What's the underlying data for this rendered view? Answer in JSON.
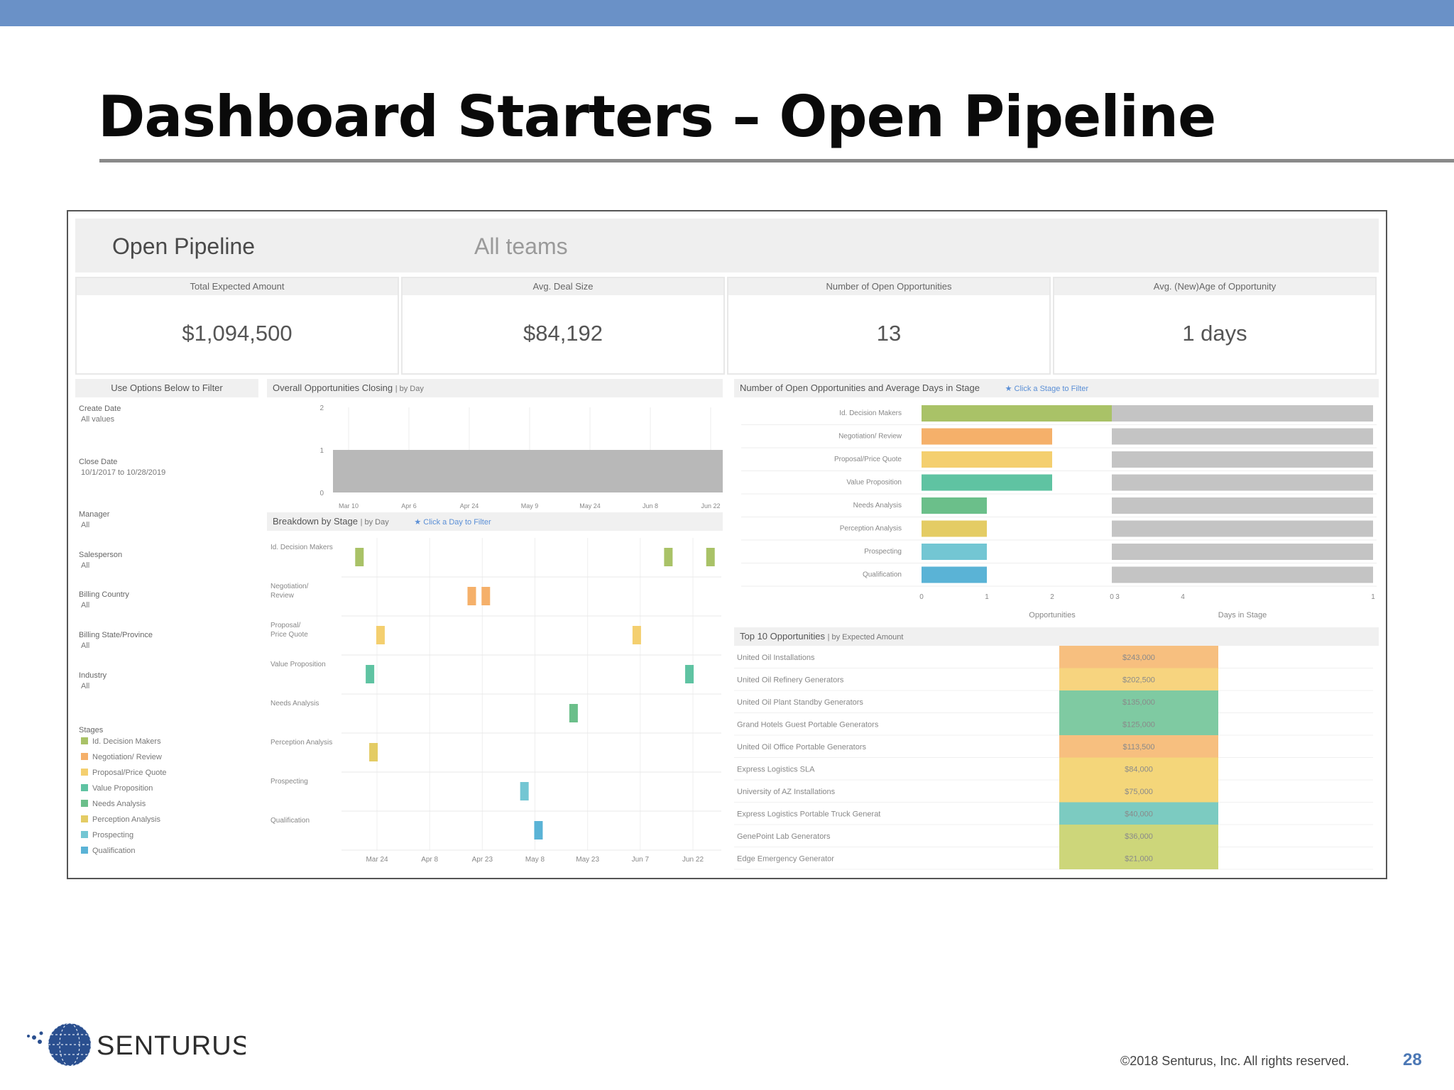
{
  "slide": {
    "title": "Dashboard Starters – Open Pipeline",
    "copyright": "©2018 Senturus, Inc. All rights reserved.",
    "page_number": "28",
    "logo_text": "SENTURUS"
  },
  "dashboard": {
    "title": "Open Pipeline",
    "subtitle": "All teams",
    "kpis": [
      {
        "label": "Total Expected Amount",
        "value": "$1,094,500"
      },
      {
        "label": "Avg. Deal Size",
        "value": "$84,192"
      },
      {
        "label": "Number of Open Opportunities",
        "value": "13"
      },
      {
        "label": "Avg. (New)Age of Opportunity",
        "value": "1 days"
      }
    ],
    "filters": {
      "heading": "Use Options Below to Filter",
      "items": [
        {
          "label": "Create Date",
          "value": "All values"
        },
        {
          "label": "Close Date",
          "value": "10/1/2017 to 10/28/2019"
        },
        {
          "label": "Manager",
          "value": "All"
        },
        {
          "label": "Salesperson",
          "value": "All"
        },
        {
          "label": "Billing Country",
          "value": "All"
        },
        {
          "label": "Billing State/Province",
          "value": "All"
        },
        {
          "label": "Industry",
          "value": "All"
        }
      ],
      "stages_heading": "Stages",
      "stages": [
        {
          "label": "Id. Decision Makers",
          "color": "#a9c267"
        },
        {
          "label": "Negotiation/ Review",
          "color": "#f5b06a"
        },
        {
          "label": "Proposal/Price Quote",
          "color": "#f4cf6f"
        },
        {
          "label": "Value Proposition",
          "color": "#5fc3a2"
        },
        {
          "label": "Needs Analysis",
          "color": "#6bbf8a"
        },
        {
          "label": "Perception Analysis",
          "color": "#e4cc64"
        },
        {
          "label": "Prospecting",
          "color": "#73c6d3"
        },
        {
          "label": "Qualification",
          "color": "#5ab3d6"
        }
      ]
    },
    "closing_chart": {
      "title": "Overall Opportunities Closing",
      "subtitle": "| by Day"
    },
    "breakdown_chart": {
      "title": "Breakdown by Stage",
      "subtitle": "| by Day",
      "hint": "★ Click a Day to Filter"
    },
    "stage_chart": {
      "title": "Number of Open Opportunities and Average Days in Stage",
      "hint": "★ Click a Stage to Filter"
    },
    "top10": {
      "title": "Top 10 Opportunities",
      "subtitle": "| by Expected Amount"
    }
  },
  "chart_data": [
    {
      "type": "bar",
      "title": "Overall Opportunities Closing",
      "x_ticks": [
        "Mar 10",
        "Apr 6",
        "Apr 24",
        "May 9",
        "May 24",
        "Jun 8",
        "Jun 22"
      ],
      "y_ticks": [
        "2",
        "1",
        "0"
      ],
      "ylim": [
        0,
        2
      ],
      "bars": [
        {
          "x_start": "Mar 10",
          "x_end": "Jun 22",
          "value": 1
        }
      ],
      "color": "#b8b8b8"
    },
    {
      "type": "bar",
      "title": "Breakdown by Stage",
      "categories": [
        "Id. Decision Makers",
        "Negotiation/ Review",
        "Proposal/Price Quote",
        "Value Proposition",
        "Needs Analysis",
        "Perception Analysis",
        "Prospecting",
        "Qualification"
      ],
      "x_ticks": [
        "Mar 24",
        "Apr 8",
        "Apr 23",
        "May 8",
        "May 23",
        "Jun 7",
        "Jun 22"
      ],
      "marks": [
        {
          "stage": 0,
          "date": "Mar 19"
        },
        {
          "stage": 0,
          "date": "Jun 15"
        },
        {
          "stage": 0,
          "date": "Jun 27"
        },
        {
          "stage": 1,
          "date": "Apr 20"
        },
        {
          "stage": 1,
          "date": "Apr 24"
        },
        {
          "stage": 2,
          "date": "Mar 25"
        },
        {
          "stage": 2,
          "date": "Jun 6"
        },
        {
          "stage": 3,
          "date": "Mar 22"
        },
        {
          "stage": 3,
          "date": "Jun 21"
        },
        {
          "stage": 4,
          "date": "May 19"
        },
        {
          "stage": 5,
          "date": "Mar 23"
        },
        {
          "stage": 6,
          "date": "May 5"
        },
        {
          "stage": 7,
          "date": "May 9"
        }
      ]
    },
    {
      "type": "bar",
      "title": "Number of Open Opportunities and Average Days in Stage",
      "categories": [
        "Id. Decision Makers",
        "Negotiation/ Review",
        "Proposal/Price Quote",
        "Value Proposition",
        "Needs Analysis",
        "Perception Analysis",
        "Prospecting",
        "Qualification"
      ],
      "series": [
        {
          "name": "Opportunities",
          "values": [
            3,
            2,
            2,
            2,
            1,
            1,
            1,
            1
          ]
        },
        {
          "name": "Days in Stage",
          "values": [
            1,
            1,
            1,
            1,
            1,
            1,
            1,
            1
          ]
        }
      ],
      "xlabel_left": "Opportunities",
      "xlabel_right": "Days in Stage",
      "left_ticks": [
        "0",
        "1",
        "2",
        "3",
        "4"
      ],
      "right_ticks": [
        "0",
        "1"
      ],
      "xlim_left": [
        0,
        4
      ],
      "xlim_right": [
        0,
        1
      ]
    },
    {
      "type": "table",
      "title": "Top 10 Opportunities",
      "rows": [
        {
          "name": "United Oil Installations",
          "amount": "$243,000",
          "color": "#f7bf7f"
        },
        {
          "name": "United Oil Refinery Generators",
          "amount": "$202,500",
          "color": "#f7d47f"
        },
        {
          "name": "United Oil Plant Standby Generators",
          "amount": "$135,000",
          "color": "#7fcaa2"
        },
        {
          "name": "Grand Hotels Guest Portable Generators",
          "amount": "$125,000",
          "color": "#7fcaa2"
        },
        {
          "name": "United Oil Office Portable Generators",
          "amount": "$113,500",
          "color": "#f7bf7f"
        },
        {
          "name": "Express Logistics SLA",
          "amount": "$84,000",
          "color": "#f4d67a"
        },
        {
          "name": "University of AZ Installations",
          "amount": "$75,000",
          "color": "#f4d67a"
        },
        {
          "name": "Express Logistics Portable Truck Generat",
          "amount": "$40,000",
          "color": "#7ccbc1"
        },
        {
          "name": "GenePoint Lab Generators",
          "amount": "$36,000",
          "color": "#cdd67a"
        },
        {
          "name": "Edge Emergency Generator",
          "amount": "$21,000",
          "color": "#cdd67a"
        }
      ]
    }
  ]
}
